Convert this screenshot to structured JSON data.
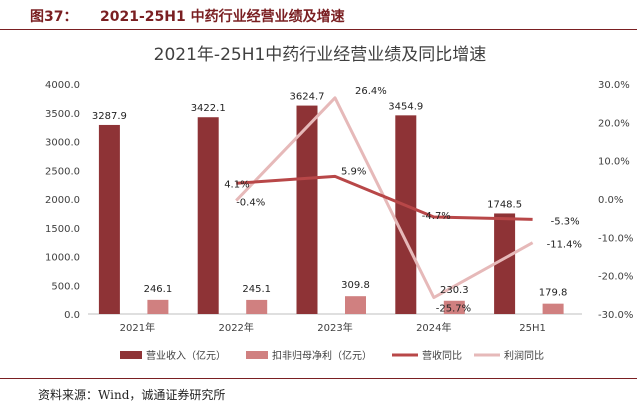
{
  "figure": {
    "label": "图37：",
    "caption": "2021-25H1 中药行业经营业绩及增速",
    "source": "资料来源：Wind，诚通证券研究所"
  },
  "colors": {
    "revenue": "#8e3336",
    "profit": "#d08080",
    "revenue_yoy": "#b84748",
    "profit_yoy": "#e6b9b9",
    "accent": "#7a1f22"
  },
  "chart_data": {
    "type": "bar",
    "title": "2021年-25H1中药行业经营业绩及同比增速",
    "categories": [
      "2021年",
      "2022年",
      "2023年",
      "2024年",
      "25H1"
    ],
    "series": [
      {
        "name": "营业收入（亿元）",
        "kind": "bar",
        "axis": "left",
        "values": [
          3287.9,
          3422.1,
          3624.7,
          3454.9,
          1748.5
        ]
      },
      {
        "name": "扣非归母净利（亿元）",
        "kind": "bar",
        "axis": "left",
        "values": [
          246.1,
          245.1,
          309.8,
          230.3,
          179.8
        ]
      },
      {
        "name": "营收同比",
        "kind": "line",
        "axis": "right",
        "values": [
          null,
          4.1,
          5.9,
          -4.7,
          -5.3
        ],
        "labels": [
          null,
          "4.1%",
          "5.9%",
          "-4.7%",
          "-5.3%"
        ]
      },
      {
        "name": "利润同比",
        "kind": "line",
        "axis": "right",
        "values": [
          null,
          -0.4,
          26.4,
          -25.7,
          -11.4
        ],
        "labels": [
          null,
          "-0.4%",
          "26.4%",
          "-25.7%",
          "-11.4%"
        ]
      }
    ],
    "y_left": {
      "min": 0,
      "max": 4000,
      "ticks": [
        "0.0",
        "500.0",
        "1000.0",
        "1500.0",
        "2000.0",
        "2500.0",
        "3000.0",
        "3500.0",
        "4000.0"
      ]
    },
    "y_right": {
      "min": -30,
      "max": 30,
      "ticks": [
        "-30.0%",
        "-20.0%",
        "-10.0%",
        "0.0%",
        "10.0%",
        "20.0%",
        "30.0%"
      ]
    },
    "grid": false,
    "legend_position": "bottom"
  }
}
